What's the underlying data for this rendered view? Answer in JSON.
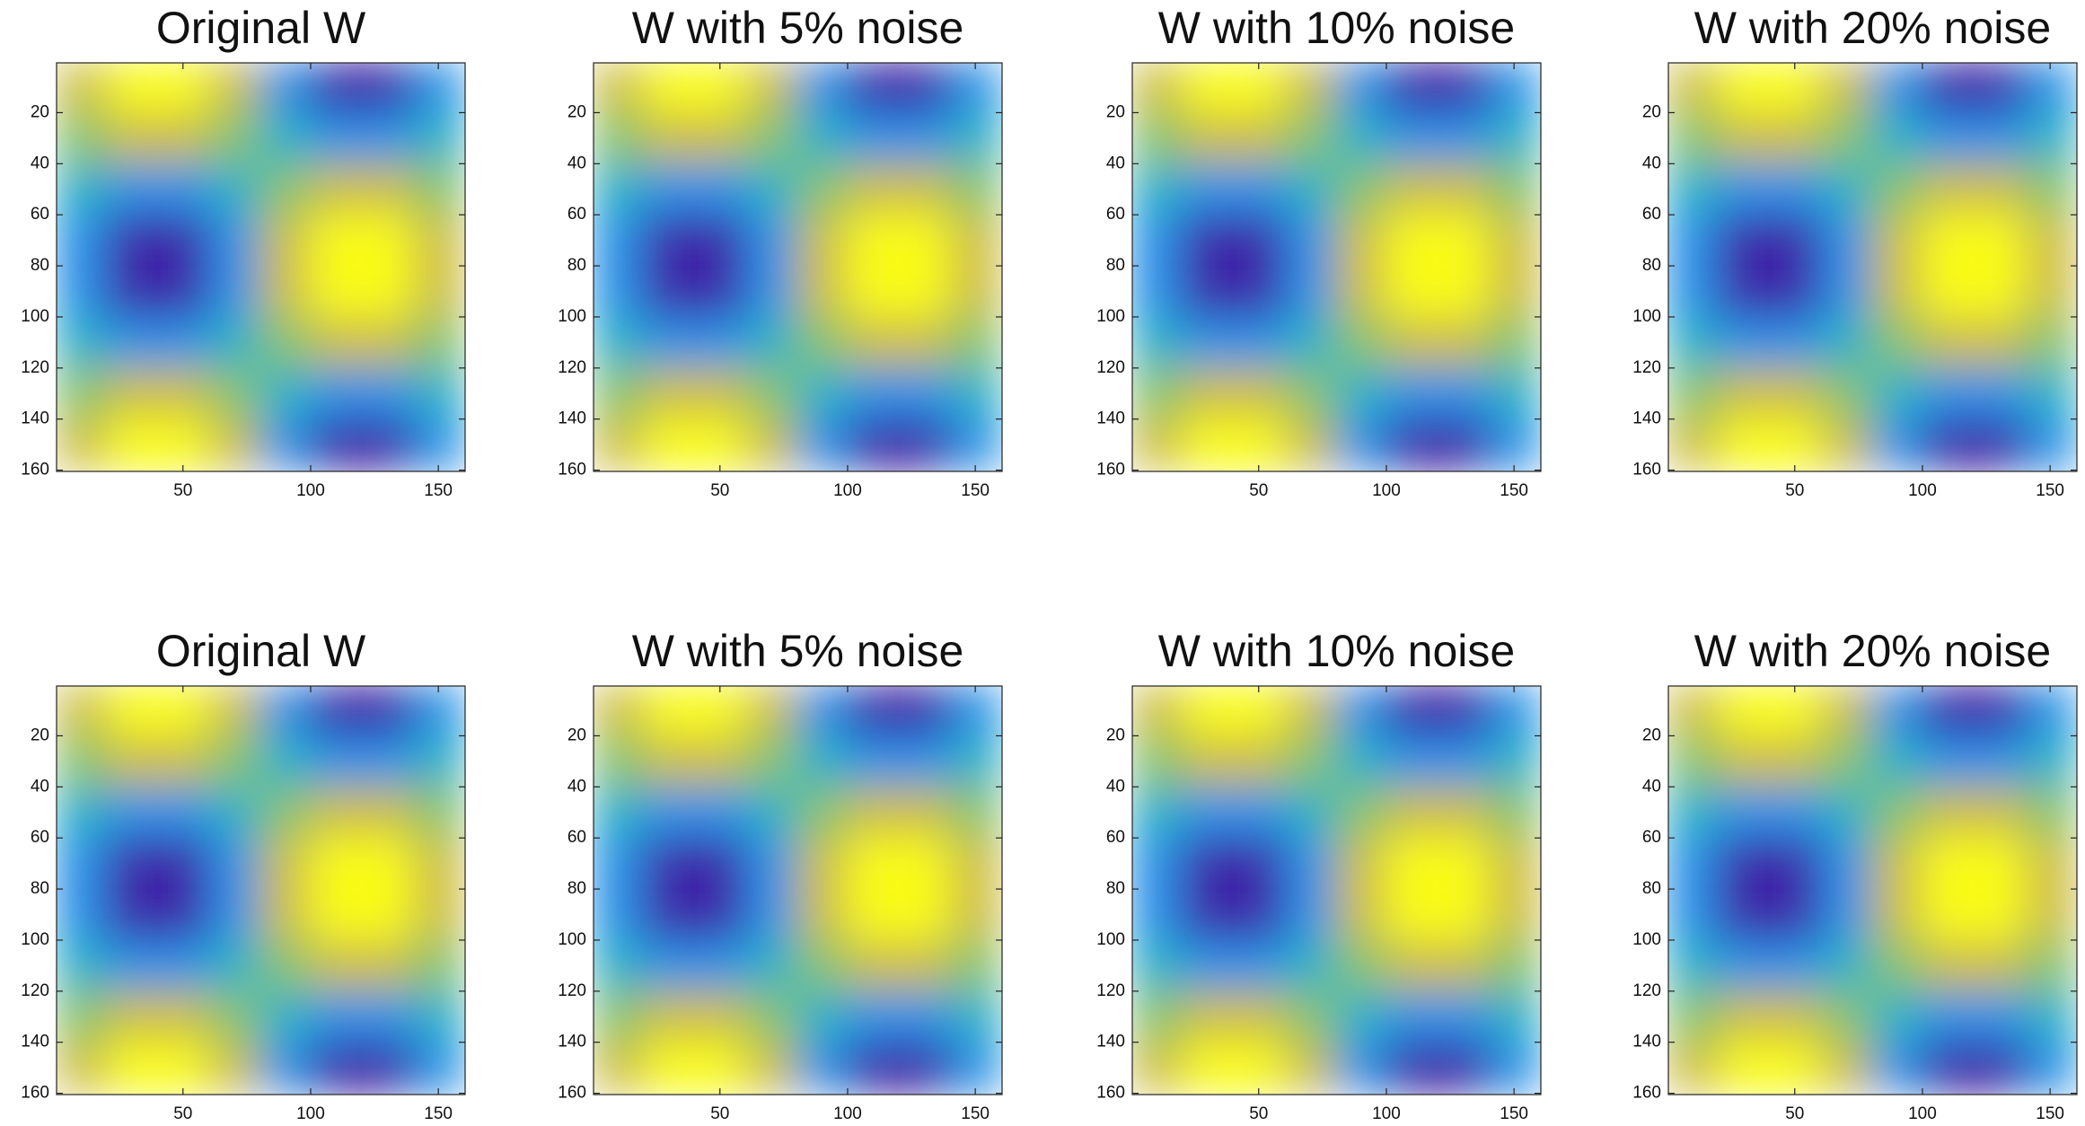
{
  "chart_data": [
    {
      "type": "heatmap",
      "title": "Original W",
      "x": [
        10,
        30,
        50,
        70,
        90,
        110,
        130,
        150
      ],
      "y": [
        10,
        30,
        50,
        70,
        90,
        110,
        130,
        150
      ],
      "values": [
        [
          0.35,
          0.85,
          0.85,
          0.35,
          -0.35,
          -0.85,
          -0.85,
          -0.35
        ],
        [
          0.15,
          0.35,
          0.35,
          0.15,
          -0.15,
          -0.35,
          -0.35,
          -0.15
        ],
        [
          -0.15,
          -0.35,
          -0.35,
          -0.15,
          0.15,
          0.35,
          0.35,
          0.15
        ],
        [
          -0.35,
          -0.85,
          -0.85,
          -0.35,
          0.35,
          0.85,
          0.85,
          0.35
        ],
        [
          -0.35,
          -0.85,
          -0.85,
          -0.35,
          0.35,
          0.85,
          0.85,
          0.35
        ],
        [
          -0.15,
          -0.35,
          -0.35,
          -0.15,
          0.15,
          0.35,
          0.35,
          0.15
        ],
        [
          0.15,
          0.35,
          0.35,
          0.15,
          -0.15,
          -0.35,
          -0.35,
          -0.15
        ],
        [
          0.35,
          0.85,
          0.85,
          0.35,
          -0.35,
          -0.85,
          -0.85,
          -0.35
        ]
      ],
      "xlim": [
        0.5,
        160.5
      ],
      "ylim": [
        0.5,
        160.5
      ],
      "xticks": [
        50,
        100,
        150
      ],
      "yticks": [
        20,
        40,
        60,
        80,
        100,
        120,
        140,
        160
      ],
      "colormap": [
        "#3e26a8",
        "#4250e6",
        "#2f85f0",
        "#1cabd6",
        "#4fbfa0",
        "#9dc85a",
        "#e8b83a",
        "#fbd42c",
        "#f9fb15"
      ]
    },
    {
      "type": "heatmap",
      "title": "W with 5% noise",
      "x": [
        10,
        30,
        50,
        70,
        90,
        110,
        130,
        150
      ],
      "y": [
        10,
        30,
        50,
        70,
        90,
        110,
        130,
        150
      ],
      "values": [
        [
          0.35,
          0.85,
          0.85,
          0.35,
          -0.35,
          -0.85,
          -0.85,
          -0.35
        ],
        [
          0.15,
          0.35,
          0.35,
          0.15,
          -0.15,
          -0.35,
          -0.35,
          -0.15
        ],
        [
          -0.15,
          -0.35,
          -0.35,
          -0.15,
          0.15,
          0.35,
          0.35,
          0.15
        ],
        [
          -0.35,
          -0.85,
          -0.85,
          -0.35,
          0.35,
          0.85,
          0.85,
          0.35
        ],
        [
          -0.35,
          -0.85,
          -0.85,
          -0.35,
          0.35,
          0.85,
          0.85,
          0.35
        ],
        [
          -0.15,
          -0.35,
          -0.35,
          -0.15,
          0.15,
          0.35,
          0.35,
          0.15
        ],
        [
          0.15,
          0.35,
          0.35,
          0.15,
          -0.15,
          -0.35,
          -0.35,
          -0.15
        ],
        [
          0.35,
          0.85,
          0.85,
          0.35,
          -0.35,
          -0.85,
          -0.85,
          -0.35
        ]
      ],
      "xlim": [
        0.5,
        160.5
      ],
      "ylim": [
        0.5,
        160.5
      ],
      "xticks": [
        50,
        100,
        150
      ],
      "yticks": [
        20,
        40,
        60,
        80,
        100,
        120,
        140,
        160
      ],
      "colormap": [
        "#3e26a8",
        "#4250e6",
        "#2f85f0",
        "#1cabd6",
        "#4fbfa0",
        "#9dc85a",
        "#e8b83a",
        "#fbd42c",
        "#f9fb15"
      ]
    },
    {
      "type": "heatmap",
      "title": "W with 10% noise",
      "x": [
        10,
        30,
        50,
        70,
        90,
        110,
        130,
        150
      ],
      "y": [
        10,
        30,
        50,
        70,
        90,
        110,
        130,
        150
      ],
      "values": [
        [
          0.35,
          0.85,
          0.85,
          0.35,
          -0.35,
          -0.85,
          -0.85,
          -0.35
        ],
        [
          0.15,
          0.35,
          0.35,
          0.15,
          -0.15,
          -0.35,
          -0.35,
          -0.15
        ],
        [
          -0.15,
          -0.35,
          -0.35,
          -0.15,
          0.15,
          0.35,
          0.35,
          0.15
        ],
        [
          -0.35,
          -0.85,
          -0.85,
          -0.35,
          0.35,
          0.85,
          0.85,
          0.35
        ],
        [
          -0.35,
          -0.85,
          -0.85,
          -0.35,
          0.35,
          0.85,
          0.85,
          0.35
        ],
        [
          -0.15,
          -0.35,
          -0.35,
          -0.15,
          0.15,
          0.35,
          0.35,
          0.15
        ],
        [
          0.15,
          0.35,
          0.35,
          0.15,
          -0.15,
          -0.35,
          -0.35,
          -0.15
        ],
        [
          0.35,
          0.85,
          0.85,
          0.35,
          -0.35,
          -0.85,
          -0.85,
          -0.35
        ]
      ],
      "xlim": [
        0.5,
        160.5
      ],
      "ylim": [
        0.5,
        160.5
      ],
      "xticks": [
        50,
        100,
        150
      ],
      "yticks": [
        20,
        40,
        60,
        80,
        100,
        120,
        140,
        160
      ],
      "colormap": [
        "#3e26a8",
        "#4250e6",
        "#2f85f0",
        "#1cabd6",
        "#4fbfa0",
        "#9dc85a",
        "#e8b83a",
        "#fbd42c",
        "#f9fb15"
      ]
    },
    {
      "type": "heatmap",
      "title": "W with 20% noise",
      "x": [
        10,
        30,
        50,
        70,
        90,
        110,
        130,
        150
      ],
      "y": [
        10,
        30,
        50,
        70,
        90,
        110,
        130,
        150
      ],
      "values": [
        [
          0.35,
          0.85,
          0.85,
          0.35,
          -0.35,
          -0.85,
          -0.85,
          -0.35
        ],
        [
          0.15,
          0.35,
          0.35,
          0.15,
          -0.15,
          -0.35,
          -0.35,
          -0.15
        ],
        [
          -0.15,
          -0.35,
          -0.35,
          -0.15,
          0.15,
          0.35,
          0.35,
          0.15
        ],
        [
          -0.35,
          -0.85,
          -0.85,
          -0.35,
          0.35,
          0.85,
          0.85,
          0.35
        ],
        [
          -0.35,
          -0.85,
          -0.85,
          -0.35,
          0.35,
          0.85,
          0.85,
          0.35
        ],
        [
          -0.15,
          -0.35,
          -0.35,
          -0.15,
          0.15,
          0.35,
          0.35,
          0.15
        ],
        [
          0.15,
          0.35,
          0.35,
          0.15,
          -0.15,
          -0.35,
          -0.35,
          -0.15
        ],
        [
          0.35,
          0.85,
          0.85,
          0.35,
          -0.35,
          -0.85,
          -0.85,
          -0.35
        ]
      ],
      "xlim": [
        0.5,
        160.5
      ],
      "ylim": [
        0.5,
        160.5
      ],
      "xticks": [
        50,
        100,
        150
      ],
      "yticks": [
        20,
        40,
        60,
        80,
        100,
        120,
        140,
        160
      ],
      "colormap": [
        "#3e26a8",
        "#4250e6",
        "#2f85f0",
        "#1cabd6",
        "#4fbfa0",
        "#9dc85a",
        "#e8b83a",
        "#fbd42c",
        "#f9fb15"
      ]
    },
    {
      "type": "heatmap",
      "title": "Original W",
      "x": [
        10,
        30,
        50,
        70,
        90,
        110,
        130,
        150
      ],
      "y": [
        10,
        30,
        50,
        70,
        90,
        110,
        130,
        150
      ],
      "values": [
        [
          0.35,
          0.85,
          0.85,
          0.35,
          -0.35,
          -0.85,
          -0.85,
          -0.35
        ],
        [
          0.15,
          0.35,
          0.35,
          0.15,
          -0.15,
          -0.35,
          -0.35,
          -0.15
        ],
        [
          -0.15,
          -0.35,
          -0.35,
          -0.15,
          0.15,
          0.35,
          0.35,
          0.15
        ],
        [
          -0.35,
          -0.85,
          -0.85,
          -0.35,
          0.35,
          0.85,
          0.85,
          0.35
        ],
        [
          -0.35,
          -0.85,
          -0.85,
          -0.35,
          0.35,
          0.85,
          0.85,
          0.35
        ],
        [
          -0.15,
          -0.35,
          -0.35,
          -0.15,
          0.15,
          0.35,
          0.35,
          0.15
        ],
        [
          0.15,
          0.35,
          0.35,
          0.15,
          -0.15,
          -0.35,
          -0.35,
          -0.15
        ],
        [
          0.35,
          0.85,
          0.85,
          0.35,
          -0.35,
          -0.85,
          -0.85,
          -0.35
        ]
      ],
      "xlim": [
        0.5,
        160.5
      ],
      "ylim": [
        0.5,
        160.5
      ],
      "xticks": [
        50,
        100,
        150
      ],
      "yticks": [
        20,
        40,
        60,
        80,
        100,
        120,
        140,
        160
      ],
      "colormap": [
        "#3e26a8",
        "#4250e6",
        "#2f85f0",
        "#1cabd6",
        "#4fbfa0",
        "#9dc85a",
        "#e8b83a",
        "#fbd42c",
        "#f9fb15"
      ]
    },
    {
      "type": "heatmap",
      "title": "W with 5% noise",
      "x": [
        10,
        30,
        50,
        70,
        90,
        110,
        130,
        150
      ],
      "y": [
        10,
        30,
        50,
        70,
        90,
        110,
        130,
        150
      ],
      "values": [
        [
          0.35,
          0.85,
          0.85,
          0.35,
          -0.35,
          -0.85,
          -0.85,
          -0.35
        ],
        [
          0.15,
          0.35,
          0.35,
          0.15,
          -0.15,
          -0.35,
          -0.35,
          -0.15
        ],
        [
          -0.15,
          -0.35,
          -0.35,
          -0.15,
          0.15,
          0.35,
          0.35,
          0.15
        ],
        [
          -0.35,
          -0.85,
          -0.85,
          -0.35,
          0.35,
          0.85,
          0.85,
          0.35
        ],
        [
          -0.35,
          -0.85,
          -0.85,
          -0.35,
          0.35,
          0.85,
          0.85,
          0.35
        ],
        [
          -0.15,
          -0.35,
          -0.35,
          -0.15,
          0.15,
          0.35,
          0.35,
          0.15
        ],
        [
          0.15,
          0.35,
          0.35,
          0.15,
          -0.15,
          -0.35,
          -0.35,
          -0.15
        ],
        [
          0.35,
          0.85,
          0.85,
          0.35,
          -0.35,
          -0.85,
          -0.85,
          -0.35
        ]
      ],
      "xlim": [
        0.5,
        160.5
      ],
      "ylim": [
        0.5,
        160.5
      ],
      "xticks": [
        50,
        100,
        150
      ],
      "yticks": [
        20,
        40,
        60,
        80,
        100,
        120,
        140,
        160
      ],
      "colormap": [
        "#3e26a8",
        "#4250e6",
        "#2f85f0",
        "#1cabd6",
        "#4fbfa0",
        "#9dc85a",
        "#e8b83a",
        "#fbd42c",
        "#f9fb15"
      ]
    },
    {
      "type": "heatmap",
      "title": "W with 10% noise",
      "x": [
        10,
        30,
        50,
        70,
        90,
        110,
        130,
        150
      ],
      "y": [
        10,
        30,
        50,
        70,
        90,
        110,
        130,
        150
      ],
      "values": [
        [
          0.35,
          0.85,
          0.85,
          0.35,
          -0.35,
          -0.85,
          -0.85,
          -0.35
        ],
        [
          0.15,
          0.35,
          0.35,
          0.15,
          -0.15,
          -0.35,
          -0.35,
          -0.15
        ],
        [
          -0.15,
          -0.35,
          -0.35,
          -0.15,
          0.15,
          0.35,
          0.35,
          0.15
        ],
        [
          -0.35,
          -0.85,
          -0.85,
          -0.35,
          0.35,
          0.85,
          0.85,
          0.35
        ],
        [
          -0.35,
          -0.85,
          -0.85,
          -0.35,
          0.35,
          0.85,
          0.85,
          0.35
        ],
        [
          -0.15,
          -0.35,
          -0.35,
          -0.15,
          0.15,
          0.35,
          0.35,
          0.15
        ],
        [
          0.15,
          0.35,
          0.35,
          0.15,
          -0.15,
          -0.35,
          -0.35,
          -0.15
        ],
        [
          0.35,
          0.85,
          0.85,
          0.35,
          -0.35,
          -0.85,
          -0.85,
          -0.35
        ]
      ],
      "xlim": [
        0.5,
        160.5
      ],
      "ylim": [
        0.5,
        160.5
      ],
      "xticks": [
        50,
        100,
        150
      ],
      "yticks": [
        20,
        40,
        60,
        80,
        100,
        120,
        140,
        160
      ],
      "colormap": [
        "#3e26a8",
        "#4250e6",
        "#2f85f0",
        "#1cabd6",
        "#4fbfa0",
        "#9dc85a",
        "#e8b83a",
        "#fbd42c",
        "#f9fb15"
      ]
    },
    {
      "type": "heatmap",
      "title": "W with 20% noise",
      "x": [
        10,
        30,
        50,
        70,
        90,
        110,
        130,
        150
      ],
      "y": [
        10,
        30,
        50,
        70,
        90,
        110,
        130,
        150
      ],
      "values": [
        [
          0.35,
          0.85,
          0.85,
          0.35,
          -0.35,
          -0.85,
          -0.85,
          -0.35
        ],
        [
          0.15,
          0.35,
          0.35,
          0.15,
          -0.15,
          -0.35,
          -0.35,
          -0.15
        ],
        [
          -0.15,
          -0.35,
          -0.35,
          -0.15,
          0.15,
          0.35,
          0.35,
          0.15
        ],
        [
          -0.35,
          -0.85,
          -0.85,
          -0.35,
          0.35,
          0.85,
          0.85,
          0.35
        ],
        [
          -0.35,
          -0.85,
          -0.85,
          -0.35,
          0.35,
          0.85,
          0.85,
          0.35
        ],
        [
          -0.15,
          -0.35,
          -0.35,
          -0.15,
          0.15,
          0.35,
          0.35,
          0.15
        ],
        [
          0.15,
          0.35,
          0.35,
          0.15,
          -0.15,
          -0.35,
          -0.35,
          -0.15
        ],
        [
          0.35,
          0.85,
          0.85,
          0.35,
          -0.35,
          -0.85,
          -0.85,
          -0.35
        ]
      ],
      "xlim": [
        0.5,
        160.5
      ],
      "ylim": [
        0.5,
        160.5
      ],
      "xticks": [
        50,
        100,
        150
      ],
      "yticks": [
        20,
        40,
        60,
        80,
        100,
        120,
        140,
        160
      ],
      "colormap": [
        "#3e26a8",
        "#4250e6",
        "#2f85f0",
        "#1cabd6",
        "#4fbfa0",
        "#9dc85a",
        "#e8b83a",
        "#fbd42c",
        "#f9fb15"
      ]
    }
  ]
}
